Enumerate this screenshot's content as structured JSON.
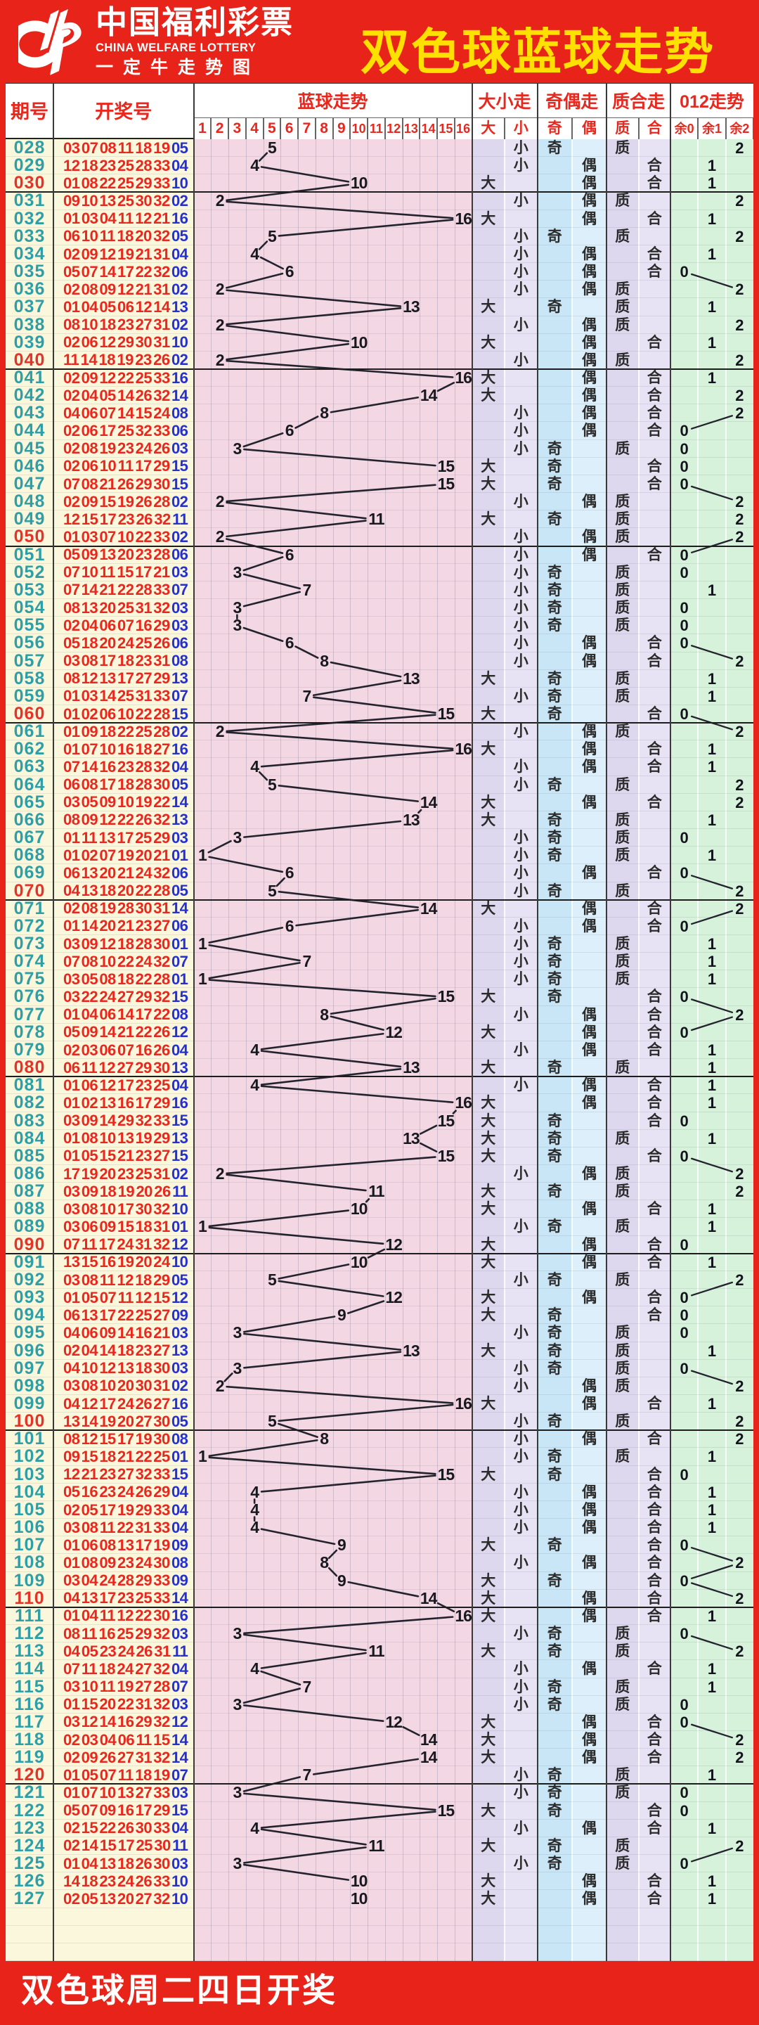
{
  "header": {
    "logo_cn": "中国福利彩票",
    "logo_en": "CHINA WELFARE LOTTERY",
    "logo_sub": "一定牛走势图",
    "title": "双色球蓝球走势"
  },
  "table_header": {
    "issue": "期号",
    "numbers": "开奖号",
    "groups": [
      {
        "label": "蓝球走势",
        "cols": [
          "1",
          "2",
          "3",
          "4",
          "5",
          "6",
          "7",
          "8",
          "9",
          "10",
          "11",
          "12",
          "13",
          "14",
          "15",
          "16"
        ]
      },
      {
        "label": "大小走势",
        "cols": [
          "大",
          "小"
        ]
      },
      {
        "label": "奇偶走势",
        "cols": [
          "奇",
          "偶"
        ]
      },
      {
        "label": "质合走势",
        "cols": [
          "质",
          "合"
        ]
      },
      {
        "label": "012走势",
        "cols": [
          "余0",
          "余1",
          "余2"
        ]
      }
    ]
  },
  "labels": {
    "big": "大",
    "small": "小",
    "odd": "奇",
    "even": "偶",
    "prime": "质",
    "composite": "合"
  },
  "footer": {
    "text": "双色球周二四日开奖"
  },
  "colors": {
    "banner_red": "#E8231A",
    "title_yellow": "#FFE100",
    "header_text_red": "#E8281E",
    "issue_teal": "#2E9FA6",
    "issue_highlight_red": "#E3342A",
    "red_ball": "#E8281E",
    "blue_ball": "#2531CE",
    "trend_ink": "#23232E",
    "bg_yellow": "#FBF7DC",
    "bg_pink": "#F3D8E4",
    "bg_lavender_dark": "#DDD8EE",
    "bg_lavender_light": "#E7E3F4",
    "bg_blue_dark": "#C9E6F6",
    "bg_blue_light": "#DCEFFA",
    "bg_green": "#D7F2DB"
  },
  "chart_data": {
    "type": "table",
    "title": "双色球蓝球走势",
    "columns": [
      "期号",
      "开奖红球",
      "蓝球"
    ],
    "derivation": {
      "大小": "蓝球1-8为小, 9-16为大",
      "奇偶": "蓝球奇数为奇, 偶数为偶",
      "质合": "质数1,2,3,5,7,11,13为质, 其余为合",
      "012": "蓝球除3的余数: 余0/余1/余2"
    },
    "highlight_issue_interval": 10,
    "empty_trailing_rows": 3,
    "rows": [
      [
        "028",
        "03 07 08 11 18 19",
        "05"
      ],
      [
        "029",
        "12 18 23 25 28 33",
        "04"
      ],
      [
        "030",
        "01 08 22 25 29 33",
        "10"
      ],
      [
        "031",
        "09 10 13 25 30 32",
        "02"
      ],
      [
        "032",
        "01 03 04 11 12 21",
        "16"
      ],
      [
        "033",
        "06 10 11 18 20 32",
        "05"
      ],
      [
        "034",
        "02 09 12 19 21 31",
        "04"
      ],
      [
        "035",
        "05 07 14 17 22 32",
        "06"
      ],
      [
        "036",
        "02 08 09 12 21 31",
        "02"
      ],
      [
        "037",
        "01 04 05 06 12 14",
        "13"
      ],
      [
        "038",
        "08 10 18 23 27 31",
        "02"
      ],
      [
        "039",
        "02 06 12 29 30 31",
        "10"
      ],
      [
        "040",
        "11 14 18 19 23 26",
        "02"
      ],
      [
        "041",
        "02 09 12 22 25 33",
        "16"
      ],
      [
        "042",
        "02 04 05 14 26 32",
        "14"
      ],
      [
        "043",
        "04 06 07 14 15 24",
        "08"
      ],
      [
        "044",
        "02 06 17 25 32 33",
        "06"
      ],
      [
        "045",
        "02 08 19 23 24 26",
        "03"
      ],
      [
        "046",
        "02 06 10 11 17 29",
        "15"
      ],
      [
        "047",
        "07 08 21 26 29 30",
        "15"
      ],
      [
        "048",
        "02 09 15 19 26 28",
        "02"
      ],
      [
        "049",
        "12 15 17 23 26 32",
        "11"
      ],
      [
        "050",
        "01 03 07 10 22 33",
        "02"
      ],
      [
        "051",
        "05 09 13 20 23 28",
        "06"
      ],
      [
        "052",
        "07 10 11 15 17 21",
        "03"
      ],
      [
        "053",
        "07 14 21 22 28 33",
        "07"
      ],
      [
        "054",
        "08 13 20 25 31 32",
        "03"
      ],
      [
        "055",
        "02 04 06 07 16 29",
        "03"
      ],
      [
        "056",
        "05 18 20 24 25 26",
        "06"
      ],
      [
        "057",
        "03 08 17 18 23 31",
        "08"
      ],
      [
        "058",
        "08 12 13 17 27 29",
        "13"
      ],
      [
        "059",
        "01 03 14 25 31 33",
        "07"
      ],
      [
        "060",
        "01 02 06 10 22 28",
        "15"
      ],
      [
        "061",
        "01 09 18 22 25 28",
        "02"
      ],
      [
        "062",
        "01 07 10 16 18 27",
        "16"
      ],
      [
        "063",
        "07 14 16 23 28 32",
        "04"
      ],
      [
        "064",
        "06 08 17 18 28 30",
        "05"
      ],
      [
        "065",
        "03 05 09 10 19 22",
        "14"
      ],
      [
        "066",
        "08 09 12 22 26 32",
        "13"
      ],
      [
        "067",
        "01 11 13 17 25 29",
        "03"
      ],
      [
        "068",
        "01 02 07 19 20 21",
        "01"
      ],
      [
        "069",
        "06 13 20 21 24 32",
        "06"
      ],
      [
        "070",
        "04 13 18 20 22 28",
        "05"
      ],
      [
        "071",
        "02 08 19 28 30 31",
        "14"
      ],
      [
        "072",
        "01 14 20 21 23 27",
        "06"
      ],
      [
        "073",
        "03 09 12 18 28 30",
        "01"
      ],
      [
        "074",
        "07 08 10 22 24 32",
        "07"
      ],
      [
        "075",
        "03 05 08 18 22 28",
        "01"
      ],
      [
        "076",
        "03 22 24 27 29 32",
        "15"
      ],
      [
        "077",
        "01 04 06 14 17 22",
        "08"
      ],
      [
        "078",
        "05 09 14 21 22 26",
        "12"
      ],
      [
        "079",
        "02 03 06 07 16 26",
        "04"
      ],
      [
        "080",
        "06 11 12 27 29 30",
        "13"
      ],
      [
        "081",
        "01 06 12 17 23 25",
        "04"
      ],
      [
        "082",
        "01 02 13 16 17 29",
        "16"
      ],
      [
        "083",
        "03 09 14 29 32 33",
        "15"
      ],
      [
        "084",
        "01 08 10 13 19 29",
        "13"
      ],
      [
        "085",
        "01 05 15 21 23 27",
        "15"
      ],
      [
        "086",
        "17 19 20 23 25 31",
        "02"
      ],
      [
        "087",
        "03 09 18 19 20 26",
        "11"
      ],
      [
        "088",
        "03 08 10 17 30 32",
        "10"
      ],
      [
        "089",
        "03 06 09 15 18 31",
        "01"
      ],
      [
        "090",
        "07 11 17 24 31 32",
        "12"
      ],
      [
        "091",
        "13 15 16 19 20 24",
        "10"
      ],
      [
        "092",
        "03 08 11 12 18 29",
        "05"
      ],
      [
        "093",
        "01 05 07 11 12 15",
        "12"
      ],
      [
        "094",
        "06 13 17 22 25 27",
        "09"
      ],
      [
        "095",
        "04 06 09 14 16 21",
        "03"
      ],
      [
        "096",
        "02 04 14 18 23 27",
        "13"
      ],
      [
        "097",
        "04 10 12 13 18 30",
        "03"
      ],
      [
        "098",
        "03 08 10 20 30 31",
        "02"
      ],
      [
        "099",
        "04 12 17 24 26 27",
        "16"
      ],
      [
        "100",
        "13 14 19 20 27 30",
        "05"
      ],
      [
        "101",
        "08 12 15 17 19 30",
        "08"
      ],
      [
        "102",
        "09 15 18 21 22 25",
        "01"
      ],
      [
        "103",
        "12 21 23 27 32 33",
        "15"
      ],
      [
        "104",
        "05 16 23 24 26 29",
        "04"
      ],
      [
        "105",
        "02 05 17 19 29 33",
        "04"
      ],
      [
        "106",
        "03 08 11 22 31 33",
        "04"
      ],
      [
        "107",
        "01 06 08 13 17 19",
        "09"
      ],
      [
        "108",
        "01 08 09 23 24 30",
        "08"
      ],
      [
        "109",
        "03 04 24 28 29 33",
        "09"
      ],
      [
        "110",
        "04 13 17 23 25 33",
        "14"
      ],
      [
        "111",
        "01 04 11 12 22 30",
        "16"
      ],
      [
        "112",
        "08 11 16 25 29 32",
        "03"
      ],
      [
        "113",
        "04 05 23 24 26 31",
        "11"
      ],
      [
        "114",
        "07 11 18 24 27 32",
        "04"
      ],
      [
        "115",
        "03 10 11 19 27 28",
        "07"
      ],
      [
        "116",
        "01 15 20 22 31 32",
        "03"
      ],
      [
        "117",
        "03 12 14 16 29 32",
        "12"
      ],
      [
        "118",
        "02 03 04 06 11 15",
        "14"
      ],
      [
        "119",
        "02 09 26 27 31 32",
        "14"
      ],
      [
        "120",
        "01 05 07 11 18 19",
        "07"
      ],
      [
        "121",
        "01 07 10 13 27 33",
        "03"
      ],
      [
        "122",
        "05 07 09 16 17 29",
        "15"
      ],
      [
        "123",
        "02 15 22 26 30 33",
        "04"
      ],
      [
        "124",
        "02 14 15 17 25 30",
        "11"
      ],
      [
        "125",
        "01 04 13 18 26 30",
        "03"
      ],
      [
        "126",
        "14 18 23 24 26 33",
        "10"
      ],
      [
        "127",
        "02 05 13 20 27 32",
        "10"
      ]
    ]
  }
}
